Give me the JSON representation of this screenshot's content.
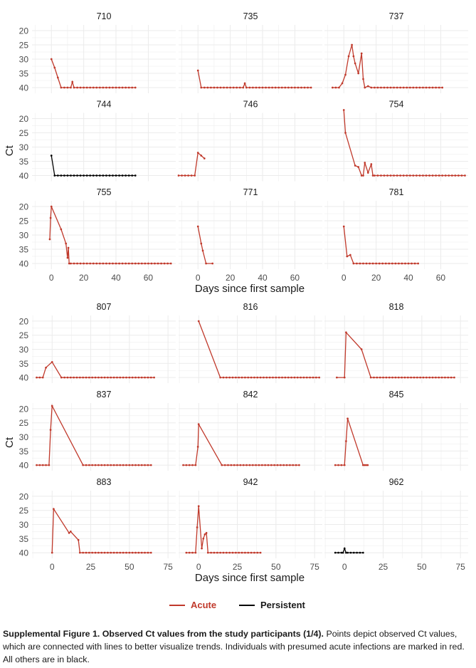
{
  "colors": {
    "acute": "#c0392b",
    "persistent": "#000000",
    "grid": "#ebebeb",
    "text": "#4d4d4d"
  },
  "blocks": [
    {
      "xlabel": "Days since first sample",
      "ylabel": "Ct",
      "xticks": [
        "0",
        "20",
        "40",
        "60"
      ],
      "xtick_values": [
        0,
        20,
        40,
        60
      ]
    },
    {
      "xlabel": "Days since first sample",
      "ylabel": "Ct",
      "xticks": [
        "0",
        "25",
        "50",
        "75"
      ],
      "xtick_values": [
        0,
        25,
        50,
        75
      ]
    }
  ],
  "chart_data": [
    {
      "type": "line",
      "block": 0,
      "xlim": [
        -12,
        77
      ],
      "ylim": [
        42,
        18
      ],
      "yticks": [
        20,
        25,
        30,
        35,
        40
      ],
      "panels": [
        {
          "title": "710",
          "group": "acute",
          "x": [
            0,
            2,
            4,
            6,
            8,
            10,
            12,
            13,
            14,
            16,
            18,
            20,
            22,
            24,
            26,
            28,
            30,
            32,
            34,
            36,
            38,
            40,
            42,
            44,
            46,
            48,
            50,
            52
          ],
          "y": [
            30,
            33,
            36.5,
            40,
            40,
            40,
            40,
            38,
            40,
            40,
            40,
            40,
            40,
            40,
            40,
            40,
            40,
            40,
            40,
            40,
            40,
            40,
            40,
            40,
            40,
            40,
            40,
            40
          ]
        },
        {
          "title": "735",
          "group": "acute",
          "x": [
            0,
            2,
            4,
            6,
            8,
            10,
            12,
            14,
            16,
            18,
            20,
            22,
            24,
            26,
            28,
            29,
            30,
            32,
            34,
            36,
            38,
            40,
            42,
            44,
            46,
            48,
            50,
            52,
            54,
            56,
            58,
            60,
            62,
            64,
            66,
            68,
            70
          ],
          "y": [
            34,
            40,
            40,
            40,
            40,
            40,
            40,
            40,
            40,
            40,
            40,
            40,
            40,
            40,
            40,
            38.5,
            40,
            40,
            40,
            40,
            40,
            40,
            40,
            40,
            40,
            40,
            40,
            40,
            40,
            40,
            40,
            40,
            40,
            40,
            40,
            40,
            40
          ]
        },
        {
          "title": "737",
          "group": "acute",
          "x": [
            -7,
            -5,
            -3,
            -1,
            1,
            3,
            5,
            6,
            7,
            9,
            11,
            12,
            13,
            15,
            17,
            19,
            21,
            23,
            25,
            27,
            29,
            31,
            33,
            35,
            37,
            39,
            41,
            43,
            45,
            47,
            49,
            51,
            53,
            55,
            57,
            59,
            61
          ],
          "y": [
            40,
            40,
            40,
            38.5,
            35.5,
            29,
            25,
            29,
            31.5,
            35,
            28,
            37,
            40,
            39.5,
            40,
            40,
            40,
            40,
            40,
            40,
            40,
            40,
            40,
            40,
            40,
            40,
            40,
            40,
            40,
            40,
            40,
            40,
            40,
            40,
            40,
            40,
            40
          ]
        },
        {
          "title": "744",
          "group": "persistent",
          "x": [
            0,
            2,
            4,
            6,
            8,
            10,
            12,
            14,
            16,
            18,
            20,
            22,
            24,
            26,
            28,
            30,
            32,
            34,
            36,
            38,
            40,
            42,
            44,
            46,
            48,
            50,
            52
          ],
          "y": [
            33,
            40,
            40,
            40,
            40,
            40,
            40,
            40,
            40,
            40,
            40,
            40,
            40,
            40,
            40,
            40,
            40,
            40,
            40,
            40,
            40,
            40,
            40,
            40,
            40,
            40,
            40
          ]
        },
        {
          "title": "746",
          "group": "acute",
          "x": [
            -12,
            -10,
            -8,
            -6,
            -4,
            -2,
            0,
            2,
            4
          ],
          "y": [
            40,
            40,
            40,
            40,
            40,
            40,
            32,
            33,
            34
          ]
        },
        {
          "title": "754",
          "group": "acute",
          "x": [
            0,
            1,
            7,
            9,
            11,
            12,
            13,
            15,
            17,
            18,
            19,
            21,
            23,
            25,
            27,
            29,
            31,
            33,
            35,
            37,
            39,
            41,
            43,
            45,
            47,
            49,
            51,
            53,
            55,
            57,
            59,
            61,
            63,
            65,
            67,
            69,
            71,
            73,
            75
          ],
          "y": [
            17,
            25,
            36.5,
            37,
            40,
            40,
            35.5,
            39,
            36,
            40,
            40,
            40,
            40,
            40,
            40,
            40,
            40,
            40,
            40,
            40,
            40,
            40,
            40,
            40,
            40,
            40,
            40,
            40,
            40,
            40,
            40,
            40,
            40,
            40,
            40,
            40,
            40,
            40,
            40
          ]
        },
        {
          "title": "755",
          "group": "acute",
          "x": [
            -1,
            -0.5,
            0,
            6,
            9,
            10,
            10.5,
            11,
            12,
            14,
            16,
            18,
            20,
            22,
            24,
            26,
            28,
            30,
            32,
            34,
            36,
            38,
            40,
            42,
            44,
            46,
            48,
            50,
            52,
            54,
            56,
            58,
            60,
            62,
            64,
            66,
            68,
            70,
            72,
            74
          ],
          "y": [
            31.5,
            24,
            20,
            28,
            33,
            38,
            34.5,
            40,
            40,
            40,
            40,
            40,
            40,
            40,
            40,
            40,
            40,
            40,
            40,
            40,
            40,
            40,
            40,
            40,
            40,
            40,
            40,
            40,
            40,
            40,
            40,
            40,
            40,
            40,
            40,
            40,
            40,
            40,
            40,
            40
          ]
        },
        {
          "title": "771",
          "group": "acute",
          "x": [
            0,
            2,
            3,
            5,
            9
          ],
          "y": [
            27,
            33,
            35.5,
            40,
            40
          ]
        },
        {
          "title": "781",
          "group": "acute",
          "x": [
            0,
            2,
            4,
            6,
            8,
            10,
            12,
            14,
            16,
            18,
            20,
            22,
            24,
            26,
            28,
            30,
            32,
            34,
            36,
            38,
            40,
            42,
            44,
            46
          ],
          "y": [
            27,
            37.5,
            37,
            40,
            40,
            40,
            40,
            40,
            40,
            40,
            40,
            40,
            40,
            40,
            40,
            40,
            40,
            40,
            40,
            40,
            40,
            40,
            40,
            40
          ]
        }
      ]
    },
    {
      "type": "line",
      "block": 1,
      "xlim": [
        -13,
        80
      ],
      "ylim": [
        42,
        18
      ],
      "yticks": [
        20,
        25,
        30,
        35,
        40
      ],
      "panels": [
        {
          "title": "807",
          "group": "acute",
          "x": [
            -10,
            -8,
            -6,
            -4,
            0,
            6,
            8,
            10,
            12,
            14,
            16,
            18,
            20,
            22,
            24,
            26,
            28,
            30,
            32,
            34,
            36,
            38,
            40,
            42,
            44,
            46,
            48,
            50,
            52,
            54,
            56,
            58,
            60,
            62,
            64,
            66
          ],
          "y": [
            40,
            40,
            40,
            36.5,
            34.5,
            40,
            40,
            40,
            40,
            40,
            40,
            40,
            40,
            40,
            40,
            40,
            40,
            40,
            40,
            40,
            40,
            40,
            40,
            40,
            40,
            40,
            40,
            40,
            40,
            40,
            40,
            40,
            40,
            40,
            40,
            40
          ]
        },
        {
          "title": "816",
          "group": "acute",
          "x": [
            0,
            14,
            16,
            18,
            20,
            22,
            24,
            26,
            28,
            30,
            32,
            34,
            36,
            38,
            40,
            42,
            44,
            46,
            48,
            50,
            52,
            54,
            56,
            58,
            60,
            62,
            64,
            66,
            68,
            70,
            72,
            74,
            76,
            78
          ],
          "y": [
            20,
            40,
            40,
            40,
            40,
            40,
            40,
            40,
            40,
            40,
            40,
            40,
            40,
            40,
            40,
            40,
            40,
            40,
            40,
            40,
            40,
            40,
            40,
            40,
            40,
            40,
            40,
            40,
            40,
            40,
            40,
            40,
            40,
            40
          ]
        },
        {
          "title": "818",
          "group": "acute",
          "x": [
            -5,
            0,
            1,
            11,
            17,
            19,
            21,
            23,
            25,
            27,
            29,
            31,
            33,
            35,
            37,
            39,
            41,
            43,
            45,
            47,
            49,
            51,
            53,
            55,
            57,
            59,
            61,
            63,
            65,
            67,
            69,
            71
          ],
          "y": [
            40,
            40,
            24,
            30,
            40,
            40,
            40,
            40,
            40,
            40,
            40,
            40,
            40,
            40,
            40,
            40,
            40,
            40,
            40,
            40,
            40,
            40,
            40,
            40,
            40,
            40,
            40,
            40,
            40,
            40,
            40,
            40
          ]
        },
        {
          "title": "837",
          "group": "acute",
          "x": [
            -10,
            -8,
            -6,
            -4,
            -2,
            -1,
            0,
            20,
            22,
            24,
            26,
            28,
            30,
            32,
            34,
            36,
            38,
            40,
            42,
            44,
            46,
            48,
            50,
            52,
            54,
            56,
            58,
            60,
            62,
            64
          ],
          "y": [
            40,
            40,
            40,
            40,
            40,
            27.5,
            19,
            40,
            40,
            40,
            40,
            40,
            40,
            40,
            40,
            40,
            40,
            40,
            40,
            40,
            40,
            40,
            40,
            40,
            40,
            40,
            40,
            40,
            40,
            40
          ]
        },
        {
          "title": "842",
          "group": "acute",
          "x": [
            -10,
            -8,
            -6,
            -4,
            -2,
            -0.5,
            0,
            15,
            17,
            19,
            21,
            23,
            25,
            27,
            29,
            31,
            33,
            35,
            37,
            39,
            41,
            43,
            45,
            47,
            49,
            51,
            53,
            55,
            57,
            59,
            61,
            63,
            65
          ],
          "y": [
            40,
            40,
            40,
            40,
            40,
            33.5,
            25.5,
            40,
            40,
            40,
            40,
            40,
            40,
            40,
            40,
            40,
            40,
            40,
            40,
            40,
            40,
            40,
            40,
            40,
            40,
            40,
            40,
            40,
            40,
            40,
            40,
            40,
            40
          ]
        },
        {
          "title": "845",
          "group": "acute",
          "x": [
            -6,
            -4,
            -2,
            0,
            1,
            2,
            12,
            13,
            14,
            15
          ],
          "y": [
            40,
            40,
            40,
            40,
            31.5,
            23.5,
            40,
            40,
            40,
            40
          ]
        },
        {
          "title": "883",
          "group": "acute",
          "x": [
            0,
            1,
            11,
            12,
            17,
            18,
            20,
            22,
            24,
            26,
            28,
            30,
            32,
            34,
            36,
            38,
            40,
            42,
            44,
            46,
            48,
            50,
            52,
            54,
            56,
            58,
            60,
            62,
            64
          ],
          "y": [
            40,
            24.5,
            33,
            32.5,
            35.5,
            40,
            40,
            40,
            40,
            40,
            40,
            40,
            40,
            40,
            40,
            40,
            40,
            40,
            40,
            40,
            40,
            40,
            40,
            40,
            40,
            40,
            40,
            40,
            40
          ]
        },
        {
          "title": "942",
          "group": "acute",
          "x": [
            -8,
            -6,
            -4,
            -2,
            -1,
            0,
            2,
            3,
            4,
            5,
            6,
            8,
            10,
            12,
            14,
            16,
            18,
            20,
            22,
            24,
            26,
            28,
            30,
            32,
            34,
            36,
            38,
            40
          ],
          "y": [
            40,
            40,
            40,
            40,
            31,
            23.5,
            38.5,
            35,
            33.5,
            33,
            40,
            40,
            40,
            40,
            40,
            40,
            40,
            40,
            40,
            40,
            40,
            40,
            40,
            40,
            40,
            40,
            40,
            40
          ]
        },
        {
          "title": "962",
          "group": "persistent",
          "x": [
            -6,
            -4,
            -2,
            -1,
            0,
            1,
            2,
            4,
            6,
            8,
            10,
            12
          ],
          "y": [
            40,
            40,
            40,
            40,
            38.5,
            40,
            40,
            40,
            40,
            40,
            40,
            40
          ]
        }
      ]
    }
  ],
  "legend": {
    "acute_label": "Acute",
    "persistent_label": "Persistent"
  },
  "caption": {
    "bold": "Supplemental Figure 1. Observed Ct values from the study participants (1/4).",
    "text": " Points depict observed Ct values, which are connected with lines to better visualize trends. Individuals with presumed acute infections are marked in red. All others are in black."
  }
}
